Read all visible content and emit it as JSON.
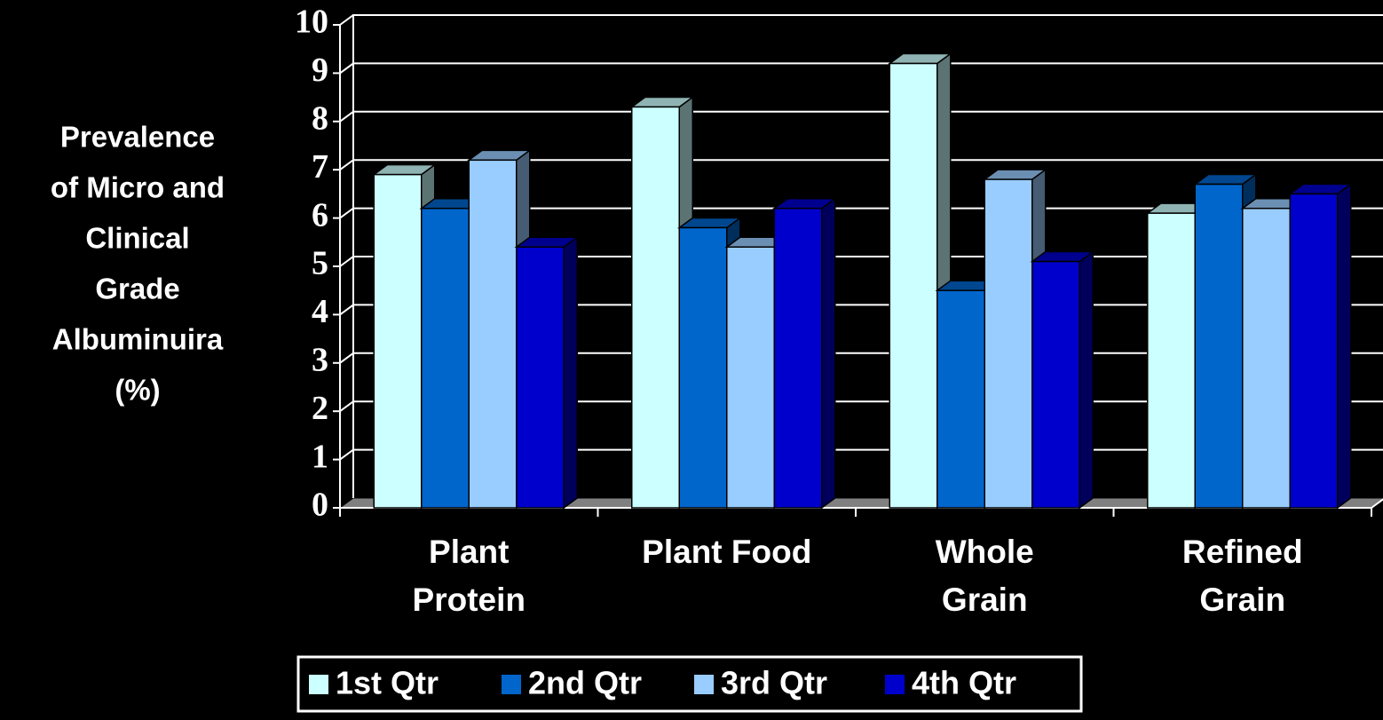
{
  "chart_data": {
    "type": "bar3d",
    "ylabel": [
      "Prevalence",
      "of Micro and",
      "Clinical",
      "Grade",
      "Albuminuira",
      "(%)"
    ],
    "categories": [
      [
        "Plant",
        "Protein"
      ],
      [
        "Plant Food"
      ],
      [
        "Whole",
        "Grain"
      ],
      [
        "Refined",
        "Grain"
      ]
    ],
    "series": [
      {
        "name": "1st Qtr",
        "color": "#ccffff",
        "values": [
          6.9,
          8.3,
          9.2,
          6.1
        ]
      },
      {
        "name": "2nd Qtr",
        "color": "#0066cc",
        "values": [
          6.2,
          5.8,
          4.5,
          6.7
        ]
      },
      {
        "name": "3rd Qtr",
        "color": "#99ccff",
        "values": [
          7.2,
          5.4,
          6.8,
          6.2
        ]
      },
      {
        "name": "4th Qtr",
        "color": "#0000cc",
        "values": [
          5.4,
          6.2,
          5.1,
          6.5
        ]
      }
    ],
    "ylim": [
      0,
      10
    ],
    "yticks": [
      0,
      1,
      2,
      3,
      4,
      5,
      6,
      7,
      8,
      9,
      10
    ],
    "grid": true,
    "legend": "bottom"
  }
}
